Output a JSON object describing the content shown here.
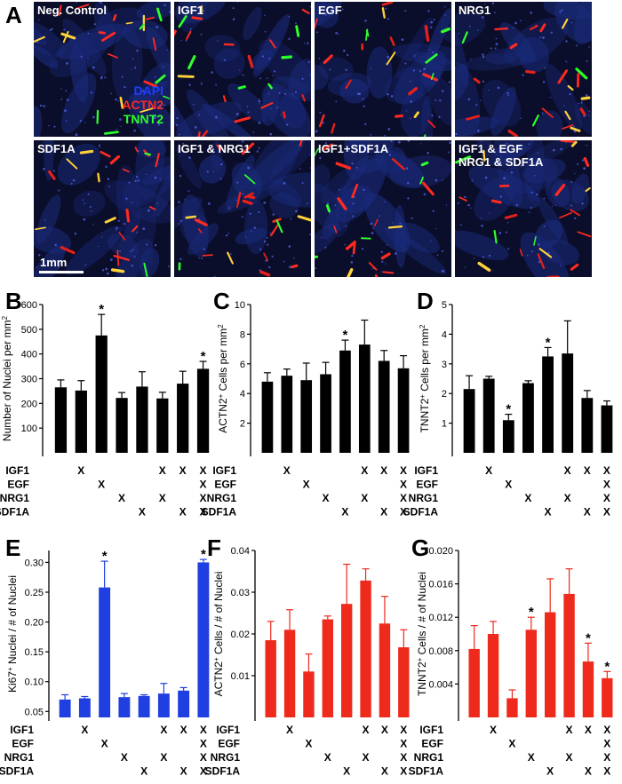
{
  "figure": {
    "panel_letters": [
      "A",
      "B",
      "C",
      "D",
      "E",
      "F",
      "G"
    ],
    "micrograph_panels": [
      {
        "label": "Neg. Control"
      },
      {
        "label": "IGF1"
      },
      {
        "label": "EGF"
      },
      {
        "label": "NRG1"
      },
      {
        "label": "SDF1A"
      },
      {
        "label": "IGF1 & NRG1"
      },
      {
        "label": "IGF1+SDF1A"
      },
      {
        "label": "IGF1 & EGF\nNRG1 & SDF1A"
      }
    ],
    "stain_legend": [
      {
        "text": "DAPI",
        "color": "#1c3cff"
      },
      {
        "text": "ACTN2",
        "color": "#ff2a20"
      },
      {
        "text": "TNNT2",
        "color": "#2cff2c"
      }
    ],
    "scale_bar_label": "1mm",
    "colors": {
      "black_bars": "#000000",
      "blue_bars": "#1f3fe0",
      "red_bars": "#ee2a1c",
      "panel_bg": "#0b0e2a"
    }
  },
  "condition_table": {
    "row_labels": [
      "IGF1",
      "EGF",
      "NRG1",
      "SDF1A"
    ],
    "mark": "X",
    "matrix": [
      [
        false,
        true,
        false,
        false,
        false,
        true,
        true,
        true
      ],
      [
        false,
        false,
        true,
        false,
        false,
        false,
        false,
        true
      ],
      [
        false,
        false,
        false,
        true,
        false,
        true,
        false,
        true
      ],
      [
        false,
        false,
        false,
        false,
        true,
        false,
        true,
        true
      ]
    ]
  },
  "chart_data": [
    {
      "panel": "B",
      "type": "bar",
      "color": "#000000",
      "ylabel_main": "Number of Nuclei per mm",
      "ylabel_sup": "2",
      "ylabel_sub": "",
      "ylabel_tail": "",
      "ylim": [
        0,
        600
      ],
      "yticks": [
        100,
        200,
        300,
        400,
        500,
        600
      ],
      "yticklabels": [
        "100",
        "200",
        "300",
        "400",
        "500",
        "600"
      ],
      "values": [
        265,
        252,
        475,
        222,
        268,
        220,
        280,
        340
      ],
      "errors": [
        30,
        40,
        85,
        22,
        60,
        25,
        50,
        30
      ],
      "significant": [
        false,
        false,
        true,
        false,
        false,
        false,
        false,
        true
      ],
      "star": "*"
    },
    {
      "panel": "C",
      "type": "bar",
      "color": "#000000",
      "ylabel_main": "ACTN2",
      "ylabel_sup": "+",
      "ylabel_tail": " Cells per mm",
      "ylabel_sup2": "2",
      "ylim": [
        0,
        10
      ],
      "yticks": [
        2,
        4,
        6,
        8,
        10
      ],
      "yticklabels": [
        "2",
        "4",
        "6",
        "8",
        "10"
      ],
      "values": [
        4.8,
        5.2,
        4.9,
        5.3,
        6.9,
        7.3,
        6.2,
        5.7
      ],
      "errors": [
        0.6,
        0.45,
        1.15,
        0.8,
        0.7,
        1.65,
        0.7,
        0.85
      ],
      "significant": [
        false,
        false,
        false,
        false,
        true,
        false,
        false,
        false
      ],
      "star": "*"
    },
    {
      "panel": "D",
      "type": "bar",
      "color": "#000000",
      "ylabel_main": "TNNT2",
      "ylabel_sup": "+",
      "ylabel_tail": " Cells per mm",
      "ylabel_sup2": "2",
      "ylim": [
        0,
        5
      ],
      "yticks": [
        1,
        2,
        3,
        4,
        5
      ],
      "yticklabels": [
        "1",
        "2",
        "3",
        "4",
        "5"
      ],
      "values": [
        2.15,
        2.5,
        1.1,
        2.35,
        3.25,
        3.35,
        1.85,
        1.6
      ],
      "errors": [
        0.45,
        0.08,
        0.2,
        0.08,
        0.3,
        1.1,
        0.25,
        0.15
      ],
      "significant": [
        false,
        false,
        true,
        false,
        true,
        false,
        false,
        false
      ],
      "star": "*"
    },
    {
      "panel": "E",
      "type": "bar",
      "color": "#1f3fe0",
      "ylabel_main": "Ki67",
      "ylabel_sup": "+",
      "ylabel_tail": " Nuclei / # of Nuclei",
      "ylabel_sup2": "",
      "ylim": [
        0.04,
        0.32
      ],
      "yticks": [
        0.05,
        0.1,
        0.15,
        0.2,
        0.25,
        0.3
      ],
      "yticklabels": [
        "0.05",
        "0.10",
        "0.15",
        "0.20",
        "0.25",
        "0.30"
      ],
      "values": [
        0.07,
        0.072,
        0.258,
        0.074,
        0.076,
        0.08,
        0.085,
        0.3
      ],
      "errors": [
        0.008,
        0.003,
        0.044,
        0.006,
        0.002,
        0.017,
        0.005,
        0.005
      ],
      "significant": [
        false,
        false,
        true,
        false,
        false,
        false,
        false,
        true
      ],
      "star": "*"
    },
    {
      "panel": "F",
      "type": "bar",
      "color": "#ee2a1c",
      "ylabel_main": "ACTN2",
      "ylabel_sup": "+",
      "ylabel_tail": " Cells / # of Nuclei",
      "ylabel_sup2": "",
      "ylim": [
        0,
        0.04
      ],
      "yticks": [
        0.01,
        0.02,
        0.03,
        0.04
      ],
      "yticklabels": [
        "0.01",
        "0.02",
        "0.03",
        "0.04"
      ],
      "values": [
        0.0185,
        0.021,
        0.011,
        0.0235,
        0.0272,
        0.0328,
        0.0225,
        0.0168
      ],
      "errors": [
        0.0045,
        0.0048,
        0.0042,
        0.0008,
        0.0095,
        0.0028,
        0.0065,
        0.0042
      ],
      "significant": [
        false,
        false,
        false,
        false,
        false,
        false,
        false,
        false
      ],
      "star": "*"
    },
    {
      "panel": "G",
      "type": "bar",
      "color": "#ee2a1c",
      "ylabel_main": "TNNT2",
      "ylabel_sup": "+",
      "ylabel_tail": " Cells / # of Nuclei",
      "ylabel_sup2": "",
      "ylim": [
        0,
        0.02
      ],
      "yticks": [
        0.004,
        0.008,
        0.012,
        0.016,
        0.02
      ],
      "yticklabels": [
        "0.004",
        "0.008",
        "0.012",
        "0.016",
        "0.020"
      ],
      "values": [
        0.0082,
        0.01,
        0.0023,
        0.0105,
        0.0126,
        0.0148,
        0.0067,
        0.0047
      ],
      "errors": [
        0.0028,
        0.0015,
        0.001,
        0.0015,
        0.004,
        0.003,
        0.0022,
        0.0008
      ],
      "significant": [
        false,
        false,
        false,
        true,
        false,
        false,
        true,
        true
      ],
      "star": "*"
    }
  ]
}
